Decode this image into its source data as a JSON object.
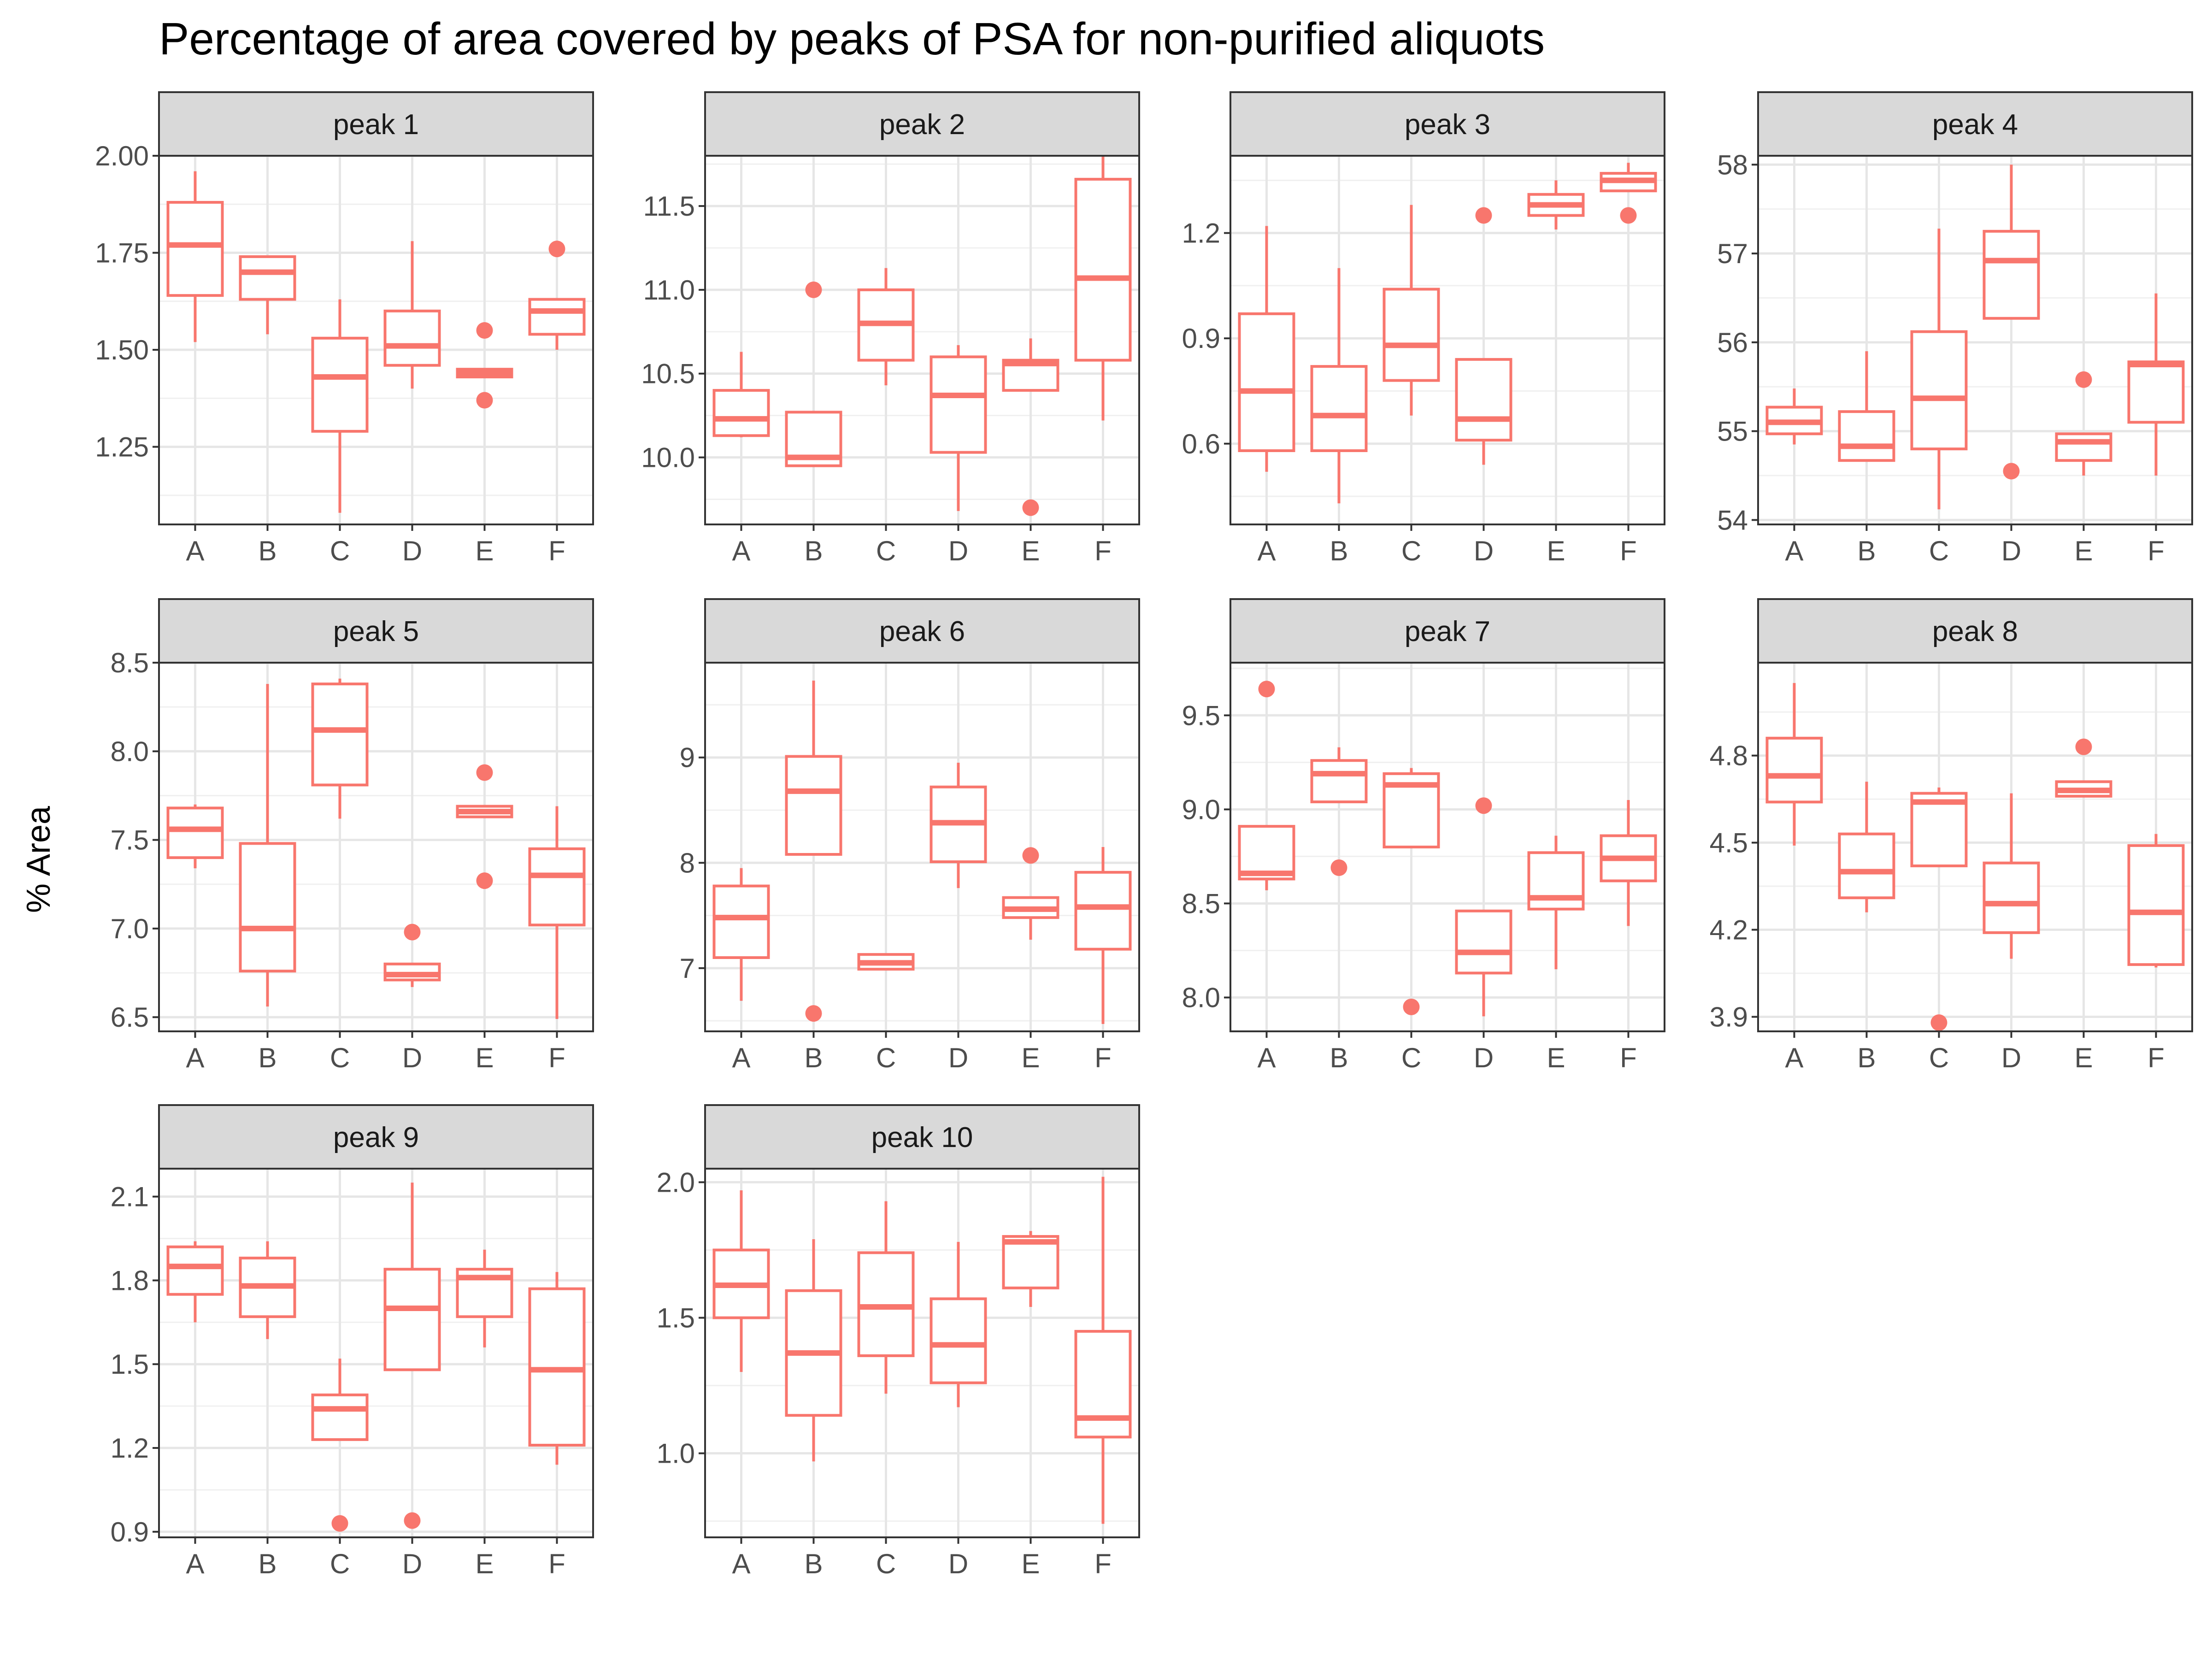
{
  "chart_data": {
    "type": "boxplot",
    "title": "Percentage of area covered by peaks of PSA for non-purified aliquots",
    "ylabel": "% Area",
    "xlabel": "",
    "categories": [
      "A",
      "B",
      "C",
      "D",
      "E",
      "F"
    ],
    "color": "#F8766D",
    "panel_background": "#ffffff",
    "strip_background": "#d9d9d9",
    "grid": true,
    "facets": [
      {
        "label": "peak 1",
        "ylim": [
          1.05,
          2.0
        ],
        "yticks": [
          "2.00",
          "1.75",
          "1.50",
          "1.25"
        ],
        "yticks_values": [
          2.0,
          1.75,
          1.5,
          1.25
        ],
        "boxes": [
          {
            "category": "A",
            "whisker_low": 1.52,
            "q1": 1.64,
            "median": 1.77,
            "q3": 1.88,
            "whisker_high": 1.96,
            "outliers": []
          },
          {
            "category": "B",
            "whisker_low": 1.54,
            "q1": 1.63,
            "median": 1.7,
            "q3": 1.74,
            "whisker_high": 1.74,
            "outliers": []
          },
          {
            "category": "C",
            "whisker_low": 1.08,
            "q1": 1.29,
            "median": 1.43,
            "q3": 1.53,
            "whisker_high": 1.63,
            "outliers": []
          },
          {
            "category": "D",
            "whisker_low": 1.4,
            "q1": 1.46,
            "median": 1.51,
            "q3": 1.6,
            "whisker_high": 1.78,
            "outliers": []
          },
          {
            "category": "E",
            "whisker_low": 1.43,
            "q1": 1.43,
            "median": 1.44,
            "q3": 1.45,
            "whisker_high": 1.45,
            "outliers": [
              1.55,
              1.37
            ]
          },
          {
            "category": "F",
            "whisker_low": 1.5,
            "q1": 1.54,
            "median": 1.6,
            "q3": 1.63,
            "whisker_high": 1.63,
            "outliers": [
              1.76
            ]
          }
        ]
      },
      {
        "label": "peak 2",
        "ylim": [
          9.6,
          11.8
        ],
        "yticks": [
          "11.5",
          "11.0",
          "10.5",
          "10.0"
        ],
        "yticks_values": [
          11.5,
          11.0,
          10.5,
          10.0
        ],
        "boxes": [
          {
            "category": "A",
            "whisker_low": 10.12,
            "q1": 10.13,
            "median": 10.23,
            "q3": 10.4,
            "whisker_high": 10.63,
            "outliers": []
          },
          {
            "category": "B",
            "whisker_low": 9.95,
            "q1": 9.95,
            "median": 10.0,
            "q3": 10.27,
            "whisker_high": 10.27,
            "outliers": [
              11.0
            ]
          },
          {
            "category": "C",
            "whisker_low": 10.43,
            "q1": 10.58,
            "median": 10.8,
            "q3": 11.0,
            "whisker_high": 11.13,
            "outliers": []
          },
          {
            "category": "D",
            "whisker_low": 9.68,
            "q1": 10.03,
            "median": 10.37,
            "q3": 10.6,
            "whisker_high": 10.67,
            "outliers": []
          },
          {
            "category": "E",
            "whisker_low": 10.4,
            "q1": 10.4,
            "median": 10.56,
            "q3": 10.58,
            "whisker_high": 10.71,
            "outliers": [
              9.7
            ]
          },
          {
            "category": "F",
            "whisker_low": 10.22,
            "q1": 10.58,
            "median": 11.07,
            "q3": 11.66,
            "whisker_high": 11.85,
            "outliers": []
          }
        ]
      },
      {
        "label": "peak 3",
        "ylim": [
          0.37,
          1.42
        ],
        "yticks": [
          "1.2",
          "0.9",
          "0.6"
        ],
        "yticks_values": [
          1.2,
          0.9,
          0.6
        ],
        "boxes": [
          {
            "category": "A",
            "whisker_low": 0.52,
            "q1": 0.58,
            "median": 0.75,
            "q3": 0.97,
            "whisker_high": 1.22,
            "outliers": []
          },
          {
            "category": "B",
            "whisker_low": 0.43,
            "q1": 0.58,
            "median": 0.68,
            "q3": 0.82,
            "whisker_high": 1.1,
            "outliers": []
          },
          {
            "category": "C",
            "whisker_low": 0.68,
            "q1": 0.78,
            "median": 0.88,
            "q3": 1.04,
            "whisker_high": 1.28,
            "outliers": []
          },
          {
            "category": "D",
            "whisker_low": 0.54,
            "q1": 0.61,
            "median": 0.67,
            "q3": 0.84,
            "whisker_high": 0.84,
            "outliers": [
              1.25
            ]
          },
          {
            "category": "E",
            "whisker_low": 1.21,
            "q1": 1.25,
            "median": 1.28,
            "q3": 1.31,
            "whisker_high": 1.35,
            "outliers": []
          },
          {
            "category": "F",
            "whisker_low": 1.32,
            "q1": 1.32,
            "median": 1.35,
            "q3": 1.37,
            "whisker_high": 1.4,
            "outliers": [
              1.25
            ]
          }
        ]
      },
      {
        "label": "peak 4",
        "ylim": [
          53.95,
          58.1
        ],
        "yticks": [
          "58",
          "57",
          "56",
          "55",
          "54"
        ],
        "yticks_values": [
          58,
          57,
          56,
          55,
          54
        ],
        "boxes": [
          {
            "category": "A",
            "whisker_low": 54.85,
            "q1": 54.97,
            "median": 55.1,
            "q3": 55.27,
            "whisker_high": 55.48,
            "outliers": []
          },
          {
            "category": "B",
            "whisker_low": 54.67,
            "q1": 54.67,
            "median": 54.83,
            "q3": 55.22,
            "whisker_high": 55.9,
            "outliers": []
          },
          {
            "category": "C",
            "whisker_low": 54.12,
            "q1": 54.8,
            "median": 55.37,
            "q3": 56.12,
            "whisker_high": 57.28,
            "outliers": []
          },
          {
            "category": "D",
            "whisker_low": 56.27,
            "q1": 56.27,
            "median": 56.92,
            "q3": 57.25,
            "whisker_high": 58.0,
            "outliers": [
              54.55
            ]
          },
          {
            "category": "E",
            "whisker_low": 54.5,
            "q1": 54.67,
            "median": 54.88,
            "q3": 54.97,
            "whisker_high": 54.97,
            "outliers": [
              55.58
            ]
          },
          {
            "category": "F",
            "whisker_low": 54.5,
            "q1": 55.1,
            "median": 55.75,
            "q3": 55.78,
            "whisker_high": 56.55,
            "outliers": []
          }
        ]
      },
      {
        "label": "peak 5",
        "ylim": [
          6.42,
          8.5
        ],
        "yticks": [
          "8.5",
          "8.0",
          "7.5",
          "7.0",
          "6.5"
        ],
        "yticks_values": [
          8.5,
          8.0,
          7.5,
          7.0,
          6.5
        ],
        "boxes": [
          {
            "category": "A",
            "whisker_low": 7.34,
            "q1": 7.4,
            "median": 7.56,
            "q3": 7.68,
            "whisker_high": 7.7,
            "outliers": []
          },
          {
            "category": "B",
            "whisker_low": 6.56,
            "q1": 6.76,
            "median": 7.0,
            "q3": 7.48,
            "whisker_high": 8.38,
            "outliers": []
          },
          {
            "category": "C",
            "whisker_low": 7.62,
            "q1": 7.81,
            "median": 8.12,
            "q3": 8.38,
            "whisker_high": 8.41,
            "outliers": []
          },
          {
            "category": "D",
            "whisker_low": 6.67,
            "q1": 6.71,
            "median": 6.74,
            "q3": 6.8,
            "whisker_high": 6.8,
            "outliers": [
              6.98
            ]
          },
          {
            "category": "E",
            "whisker_low": 7.63,
            "q1": 7.63,
            "median": 7.66,
            "q3": 7.69,
            "whisker_high": 7.69,
            "outliers": [
              7.88,
              7.27
            ]
          },
          {
            "category": "F",
            "whisker_low": 6.49,
            "q1": 7.02,
            "median": 7.3,
            "q3": 7.45,
            "whisker_high": 7.69,
            "outliers": []
          }
        ]
      },
      {
        "label": "peak 6",
        "ylim": [
          6.4,
          9.9
        ],
        "yticks": [
          "9",
          "8",
          "7"
        ],
        "yticks_values": [
          9,
          8,
          7
        ],
        "boxes": [
          {
            "category": "A",
            "whisker_low": 6.69,
            "q1": 7.1,
            "median": 7.48,
            "q3": 7.78,
            "whisker_high": 7.95,
            "outliers": []
          },
          {
            "category": "B",
            "whisker_low": 8.08,
            "q1": 8.08,
            "median": 8.68,
            "q3": 9.01,
            "whisker_high": 9.73,
            "outliers": [
              6.57
            ]
          },
          {
            "category": "C",
            "whisker_low": 6.98,
            "q1": 6.99,
            "median": 7.05,
            "q3": 7.13,
            "whisker_high": 7.13,
            "outliers": []
          },
          {
            "category": "D",
            "whisker_low": 7.76,
            "q1": 8.01,
            "median": 8.38,
            "q3": 8.72,
            "whisker_high": 8.95,
            "outliers": []
          },
          {
            "category": "E",
            "whisker_low": 7.27,
            "q1": 7.48,
            "median": 7.56,
            "q3": 7.67,
            "whisker_high": 7.67,
            "outliers": [
              8.07
            ]
          },
          {
            "category": "F",
            "whisker_low": 6.47,
            "q1": 7.18,
            "median": 7.58,
            "q3": 7.91,
            "whisker_high": 8.15,
            "outliers": []
          }
        ]
      },
      {
        "label": "peak 7",
        "ylim": [
          7.82,
          9.78
        ],
        "yticks": [
          "9.5",
          "9.0",
          "8.5",
          "8.0"
        ],
        "yticks_values": [
          9.5,
          9.0,
          8.5,
          8.0
        ],
        "boxes": [
          {
            "category": "A",
            "whisker_low": 8.57,
            "q1": 8.63,
            "median": 8.66,
            "q3": 8.91,
            "whisker_high": 8.91,
            "outliers": [
              9.64
            ]
          },
          {
            "category": "B",
            "whisker_low": 9.04,
            "q1": 9.04,
            "median": 9.19,
            "q3": 9.26,
            "whisker_high": 9.33,
            "outliers": [
              8.69
            ]
          },
          {
            "category": "C",
            "whisker_low": 8.8,
            "q1": 8.8,
            "median": 9.13,
            "q3": 9.19,
            "whisker_high": 9.22,
            "outliers": [
              7.95
            ]
          },
          {
            "category": "D",
            "whisker_low": 7.9,
            "q1": 8.13,
            "median": 8.24,
            "q3": 8.46,
            "whisker_high": 8.46,
            "outliers": [
              9.02
            ]
          },
          {
            "category": "E",
            "whisker_low": 8.15,
            "q1": 8.47,
            "median": 8.53,
            "q3": 8.77,
            "whisker_high": 8.86,
            "outliers": []
          },
          {
            "category": "F",
            "whisker_low": 8.38,
            "q1": 8.62,
            "median": 8.74,
            "q3": 8.86,
            "whisker_high": 9.05,
            "outliers": []
          }
        ]
      },
      {
        "label": "peak 8",
        "ylim": [
          3.85,
          5.12
        ],
        "yticks": [
          "4.8",
          "4.5",
          "4.2",
          "3.9"
        ],
        "yticks_values": [
          4.8,
          4.5,
          4.2,
          3.9
        ],
        "boxes": [
          {
            "category": "A",
            "whisker_low": 4.49,
            "q1": 4.64,
            "median": 4.73,
            "q3": 4.86,
            "whisker_high": 5.05,
            "outliers": []
          },
          {
            "category": "B",
            "whisker_low": 4.26,
            "q1": 4.31,
            "median": 4.4,
            "q3": 4.53,
            "whisker_high": 4.71,
            "outliers": []
          },
          {
            "category": "C",
            "whisker_low": 4.42,
            "q1": 4.42,
            "median": 4.64,
            "q3": 4.67,
            "whisker_high": 4.69,
            "outliers": [
              3.88
            ]
          },
          {
            "category": "D",
            "whisker_low": 4.1,
            "q1": 4.19,
            "median": 4.29,
            "q3": 4.43,
            "whisker_high": 4.67,
            "outliers": []
          },
          {
            "category": "E",
            "whisker_low": 4.66,
            "q1": 4.66,
            "median": 4.68,
            "q3": 4.71,
            "whisker_high": 4.71,
            "outliers": [
              4.83
            ]
          },
          {
            "category": "F",
            "whisker_low": 4.07,
            "q1": 4.08,
            "median": 4.26,
            "q3": 4.49,
            "whisker_high": 4.53,
            "outliers": []
          }
        ]
      },
      {
        "label": "peak 9",
        "ylim": [
          0.88,
          2.2
        ],
        "yticks": [
          "2.1",
          "1.8",
          "1.5",
          "1.2",
          "0.9"
        ],
        "yticks_values": [
          2.1,
          1.8,
          1.5,
          1.2,
          0.9
        ],
        "boxes": [
          {
            "category": "A",
            "whisker_low": 1.65,
            "q1": 1.75,
            "median": 1.85,
            "q3": 1.92,
            "whisker_high": 1.94,
            "outliers": []
          },
          {
            "category": "B",
            "whisker_low": 1.59,
            "q1": 1.67,
            "median": 1.78,
            "q3": 1.88,
            "whisker_high": 1.94,
            "outliers": []
          },
          {
            "category": "C",
            "whisker_low": 1.23,
            "q1": 1.23,
            "median": 1.34,
            "q3": 1.39,
            "whisker_high": 1.52,
            "outliers": [
              0.93
            ]
          },
          {
            "category": "D",
            "whisker_low": 1.48,
            "q1": 1.48,
            "median": 1.7,
            "q3": 1.84,
            "whisker_high": 2.15,
            "outliers": [
              0.94
            ]
          },
          {
            "category": "E",
            "whisker_low": 1.56,
            "q1": 1.67,
            "median": 1.81,
            "q3": 1.84,
            "whisker_high": 1.91,
            "outliers": []
          },
          {
            "category": "F",
            "whisker_low": 1.14,
            "q1": 1.21,
            "median": 1.48,
            "q3": 1.77,
            "whisker_high": 1.83,
            "outliers": []
          }
        ]
      },
      {
        "label": "peak 10",
        "ylim": [
          0.69,
          2.05
        ],
        "yticks": [
          "2.0",
          "1.5",
          "1.0"
        ],
        "yticks_values": [
          2.0,
          1.5,
          1.0
        ],
        "boxes": [
          {
            "category": "A",
            "whisker_low": 1.3,
            "q1": 1.5,
            "median": 1.62,
            "q3": 1.75,
            "whisker_high": 1.97,
            "outliers": []
          },
          {
            "category": "B",
            "whisker_low": 0.97,
            "q1": 1.14,
            "median": 1.37,
            "q3": 1.6,
            "whisker_high": 1.79,
            "outliers": []
          },
          {
            "category": "C",
            "whisker_low": 1.22,
            "q1": 1.36,
            "median": 1.54,
            "q3": 1.74,
            "whisker_high": 1.93,
            "outliers": []
          },
          {
            "category": "D",
            "whisker_low": 1.17,
            "q1": 1.26,
            "median": 1.4,
            "q3": 1.57,
            "whisker_high": 1.78,
            "outliers": []
          },
          {
            "category": "E",
            "whisker_low": 1.54,
            "q1": 1.61,
            "median": 1.78,
            "q3": 1.8,
            "whisker_high": 1.82,
            "outliers": []
          },
          {
            "category": "F",
            "whisker_low": 0.74,
            "q1": 1.06,
            "median": 1.13,
            "q3": 1.45,
            "whisker_high": 2.02,
            "outliers": []
          }
        ]
      }
    ]
  }
}
